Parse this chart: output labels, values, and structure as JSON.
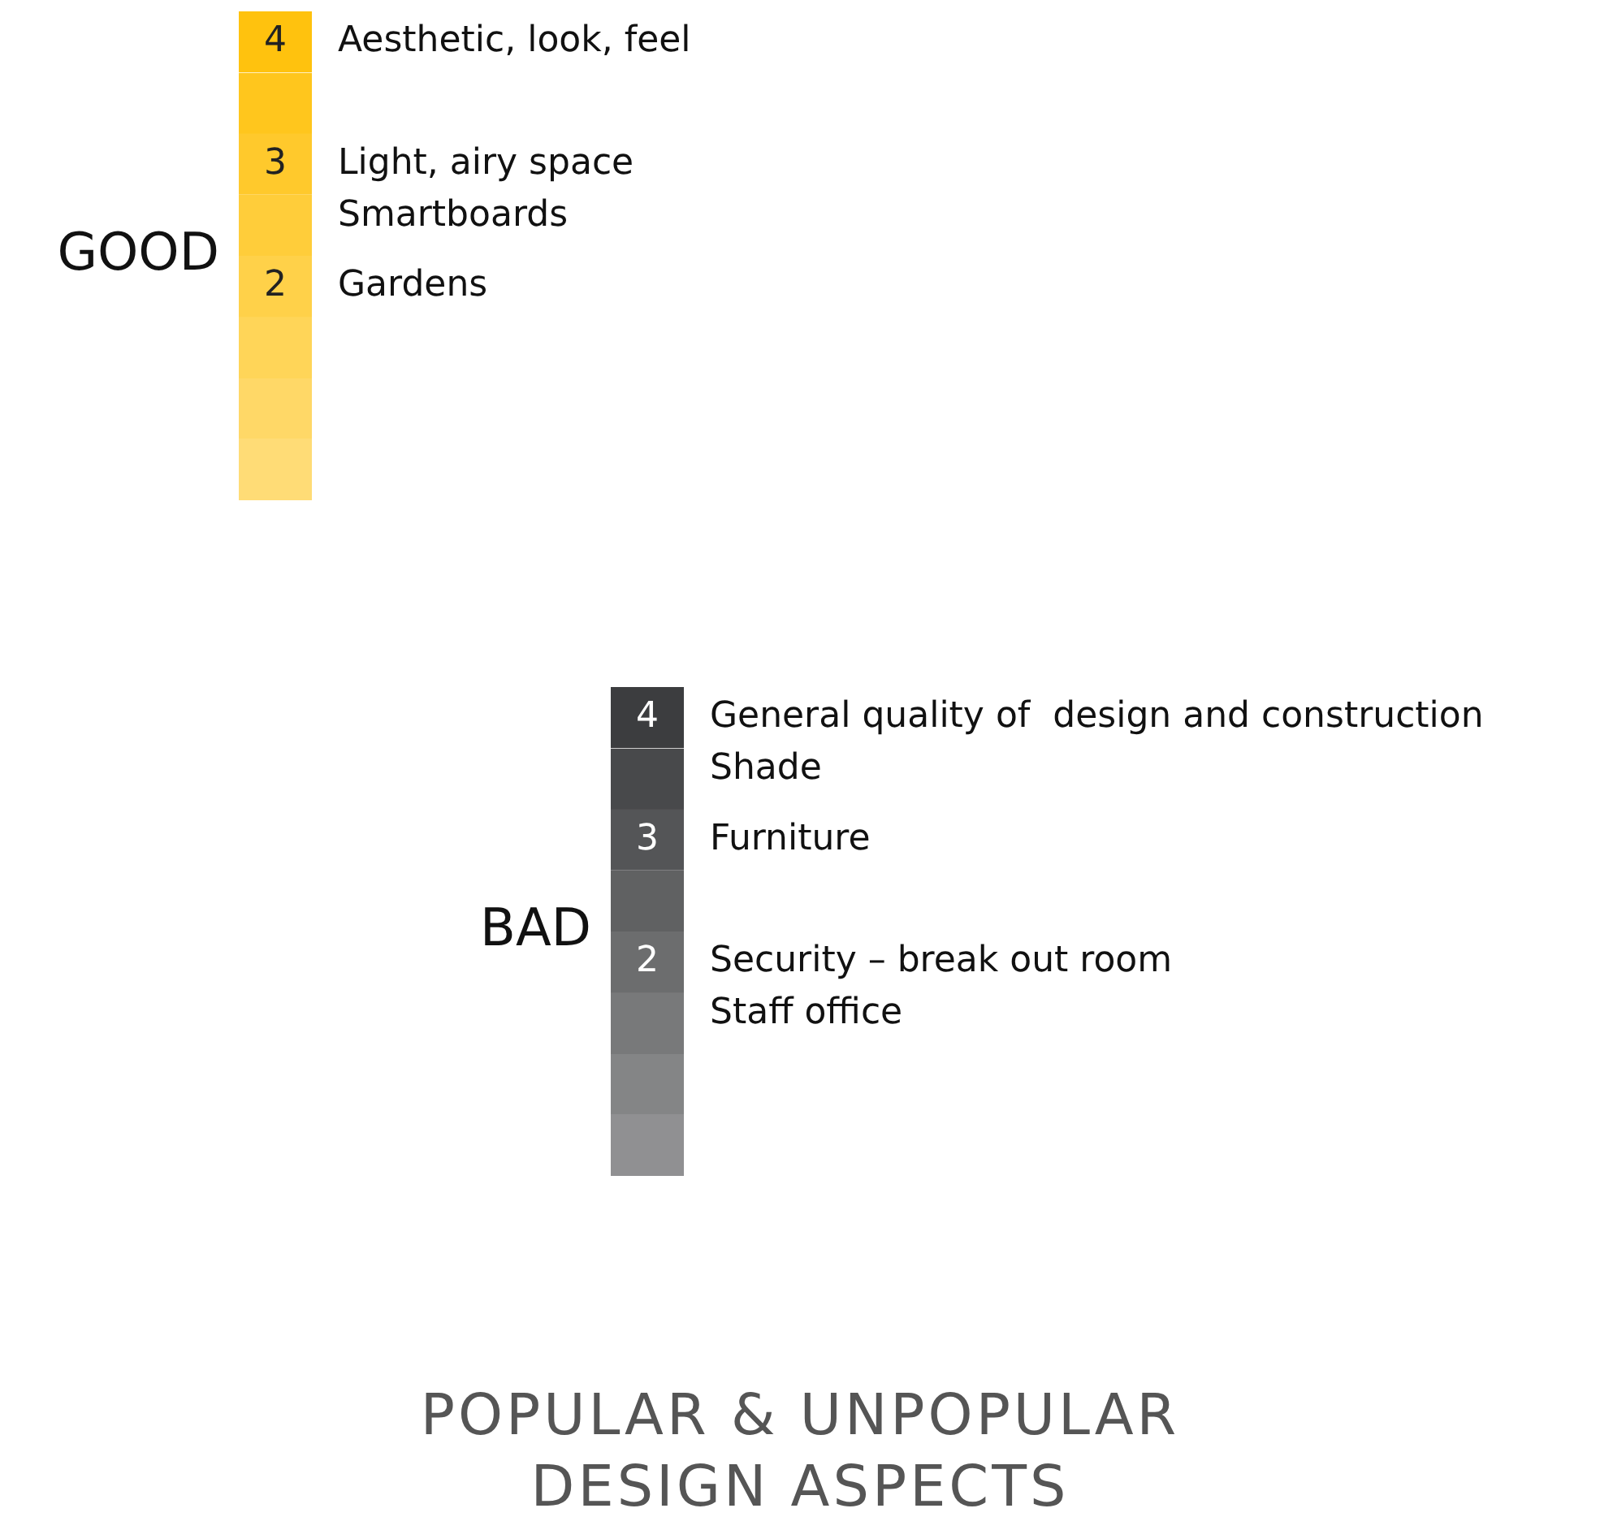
{
  "chart_data": [
    {
      "type": "other",
      "ylabel": "GOOD",
      "color": "#ffc20e",
      "colors": [
        "#ffc20e",
        "#ffc92c",
        "#ffd149"
      ],
      "categories": [
        "Aesthetic, look, feel",
        "Light, airy space\nSmartboards",
        "Gardens"
      ],
      "values": [
        4,
        3,
        2
      ],
      "data_labels": true
    },
    {
      "type": "other",
      "ylabel": "BAD",
      "color": "#3c3d3f",
      "colors": [
        "#3c3d3f",
        "#545557",
        "#6c6d6e"
      ],
      "title": "POPULAR & UNPOPULAR\nDESIGN ASPECTS",
      "categories": [
        "General quality of  design and construction\nShade",
        "Furniture",
        "Security – break out room\nStaff office"
      ],
      "values": [
        4,
        3,
        2
      ],
      "data_labels": true
    }
  ]
}
